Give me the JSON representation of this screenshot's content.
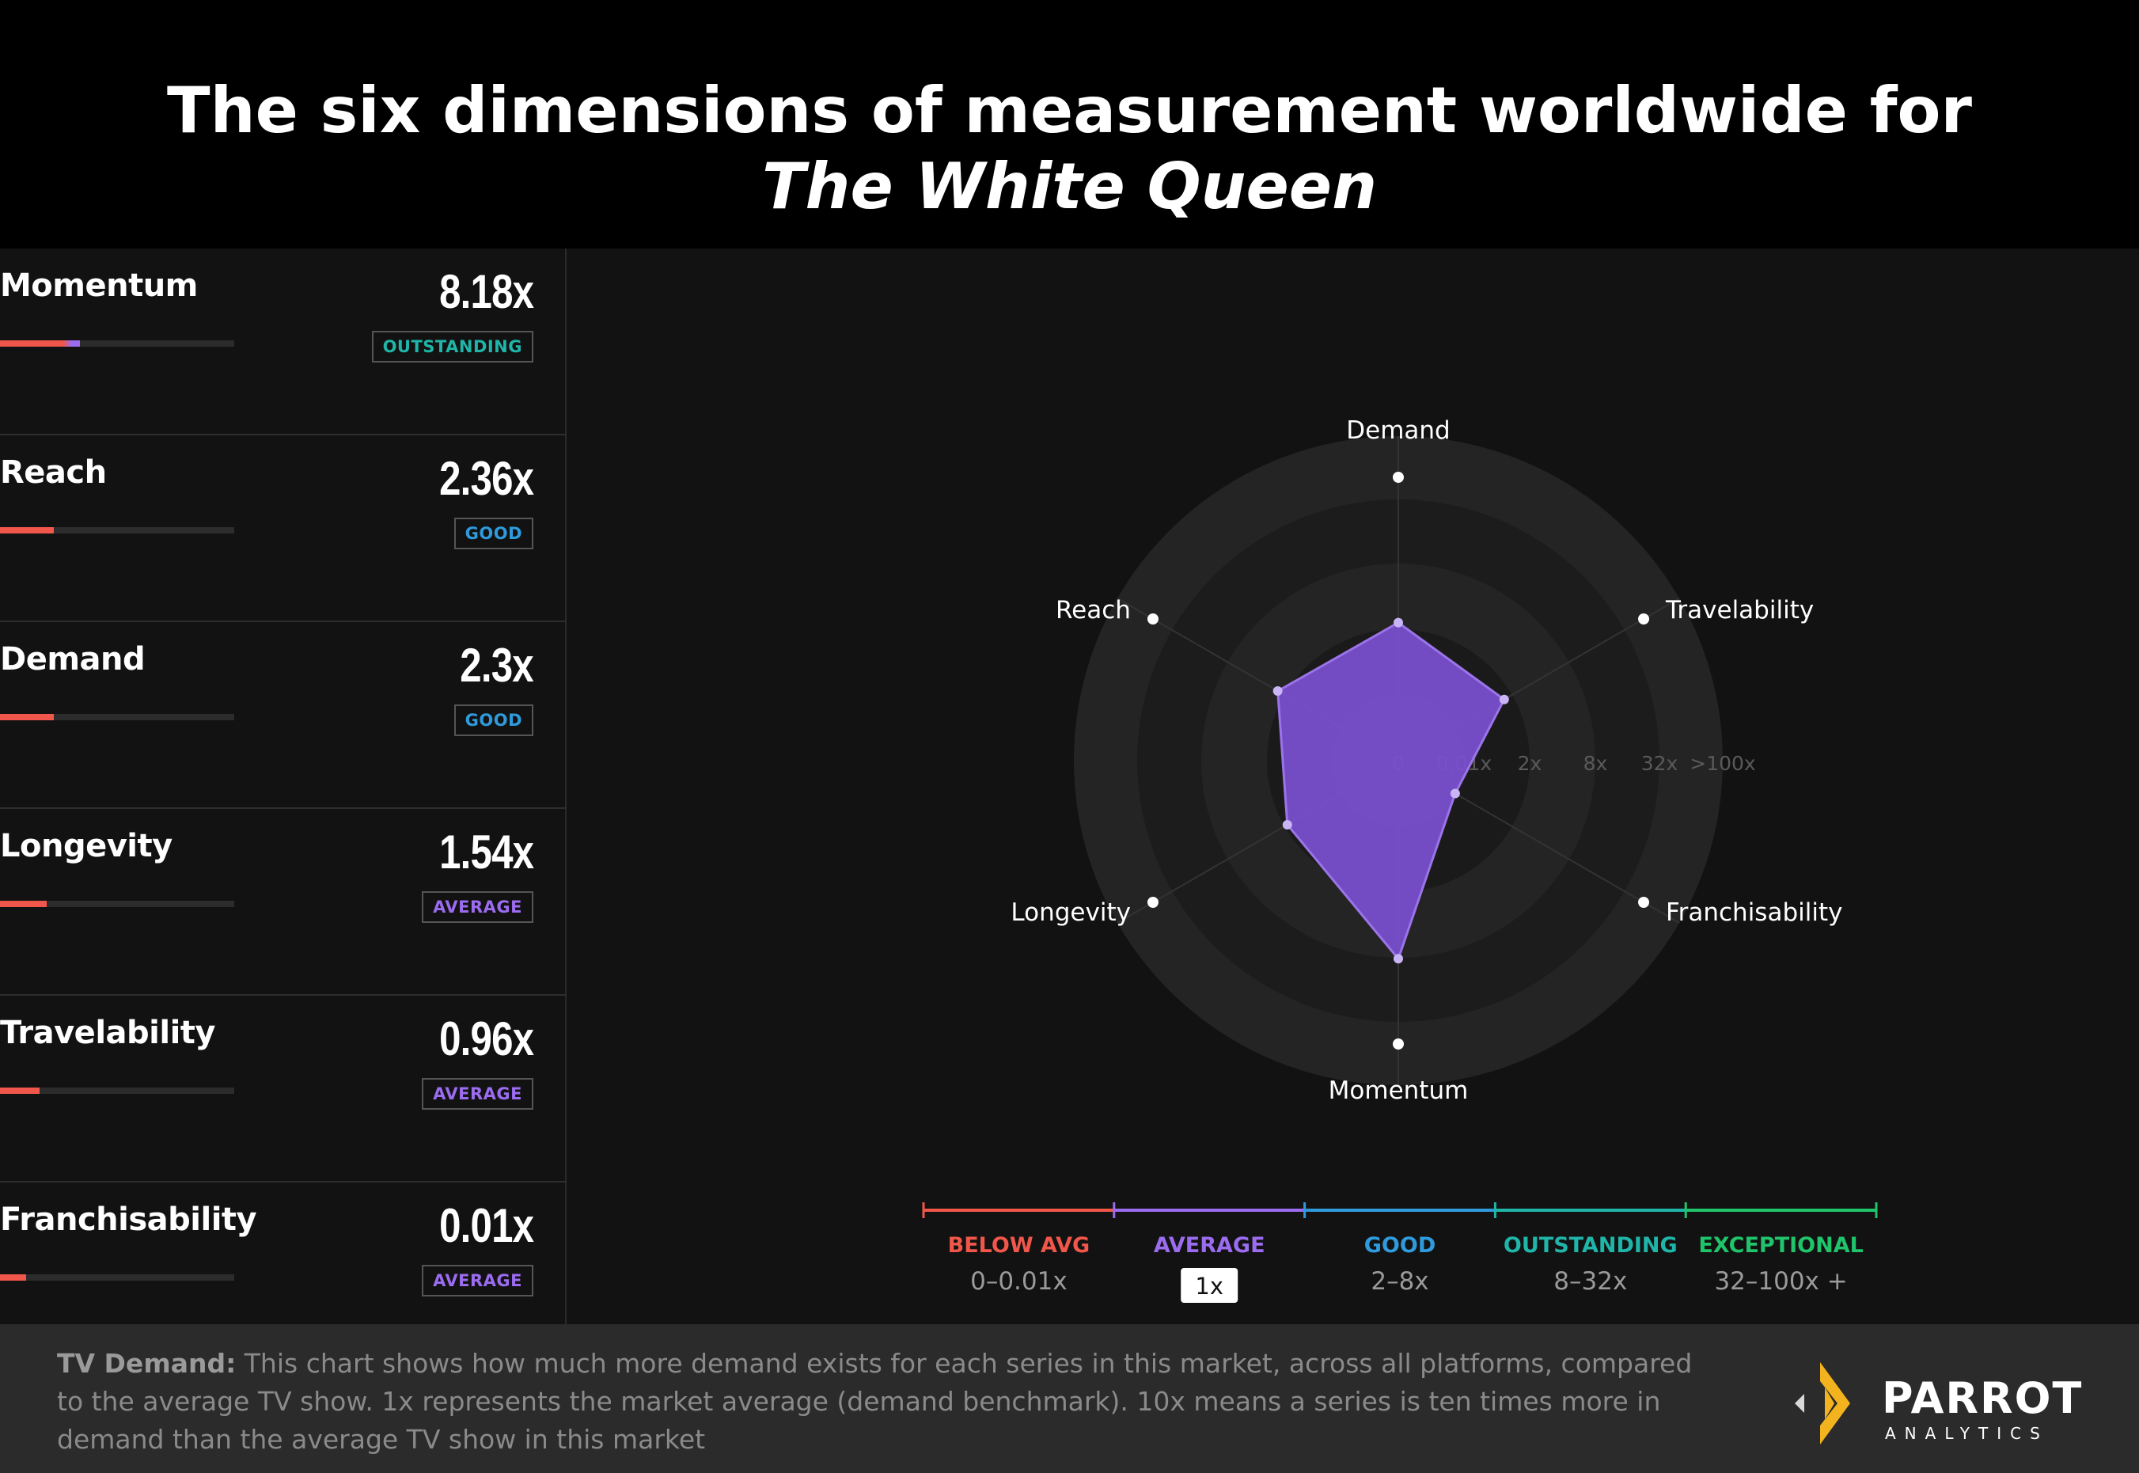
{
  "title": {
    "prefix": "The six dimensions of measurement worldwide for ",
    "show": "The White Queen"
  },
  "metrics": [
    {
      "name": "Momentum",
      "value": "8.18x",
      "rating": "OUTSTANDING",
      "rating_color": "#1fb5a8",
      "bar_fill": 0.34
    },
    {
      "name": "Reach",
      "value": "2.36x",
      "rating": "GOOD",
      "rating_color": "#2f9bdc",
      "bar_fill": 0.23
    },
    {
      "name": "Demand",
      "value": "2.3x",
      "rating": "GOOD",
      "rating_color": "#2f9bdc",
      "bar_fill": 0.23
    },
    {
      "name": "Longevity",
      "value": "1.54x",
      "rating": "AVERAGE",
      "rating_color": "#9b6cf0",
      "bar_fill": 0.2
    },
    {
      "name": "Travelability",
      "value": "0.96x",
      "rating": "AVERAGE",
      "rating_color": "#9b6cf0",
      "bar_fill": 0.17
    },
    {
      "name": "Franchisability",
      "value": "0.01x",
      "rating": "AVERAGE",
      "rating_color": "#9b6cf0",
      "bar_fill": 0.11
    }
  ],
  "chart_data": {
    "type": "radar",
    "axes": [
      "Demand",
      "Travelability",
      "Franchisability",
      "Momentum",
      "Longevity",
      "Reach"
    ],
    "values": [
      2.3,
      0.96,
      0.01,
      8.18,
      1.54,
      2.36
    ],
    "scale_ticks": [
      "0",
      "0.01x",
      "2x",
      "8x",
      "32x",
      ">100x"
    ],
    "scale": "logarithmic",
    "polygon_color": "#7b4fd0"
  },
  "legend": [
    {
      "label": "BELOW AVG",
      "range": "0–0.01x",
      "color": "#f0574a"
    },
    {
      "label": "AVERAGE",
      "range": "1x",
      "color": "#9b6cf0"
    },
    {
      "label": "GOOD",
      "range": "2–8x",
      "color": "#2f9bdc"
    },
    {
      "label": "OUTSTANDING",
      "range": "8–32x",
      "color": "#1fb5a8"
    },
    {
      "label": "EXCEPTIONAL",
      "range": "32–100x +",
      "color": "#1fc46b"
    }
  ],
  "footer": {
    "lead": "TV Demand:",
    "text": " This chart shows how much more demand exists for each series in this market, across all platforms, compared to the average TV show. 1x represents the market average (demand benchmark). 10x means a series is ten times more in demand than the average TV show in this market"
  },
  "logo": {
    "name": "PARROT",
    "sub": "ANALYTICS",
    "icon": "parrot-analytics-logo-icon"
  }
}
